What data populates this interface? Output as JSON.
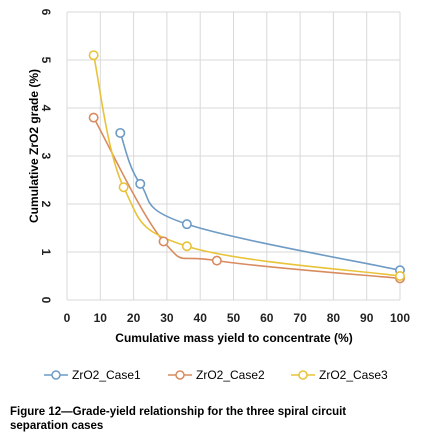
{
  "chart_data": {
    "type": "line",
    "xlabel": "Cumulative mass yield to concentrate (%)",
    "ylabel": "Cumulative ZrO2 grade (%)",
    "xlim": [
      0,
      100
    ],
    "ylim": [
      0,
      6
    ],
    "xticks": [
      "0",
      "10",
      "20",
      "30",
      "40",
      "50",
      "60",
      "70",
      "80",
      "90",
      "100"
    ],
    "yticks": [
      "0",
      "1",
      "2",
      "3",
      "4",
      "5",
      "6"
    ],
    "grid": true,
    "legend_position": "bottom",
    "series": [
      {
        "name": "ZrO2_Case1",
        "color": "#6e9bc5",
        "x": [
          16,
          22,
          36,
          100
        ],
        "y": [
          3.48,
          2.42,
          1.58,
          0.62
        ]
      },
      {
        "name": "ZrO2_Case2",
        "color": "#d98b5f",
        "x": [
          8,
          29,
          45,
          100
        ],
        "y": [
          3.8,
          1.22,
          0.82,
          0.45
        ]
      },
      {
        "name": "ZrO2_Case3",
        "color": "#e8c33a",
        "x": [
          8,
          17,
          36,
          100
        ],
        "y": [
          5.1,
          2.35,
          1.12,
          0.5
        ]
      }
    ]
  },
  "caption": {
    "line1": "Figure 12—Grade-yield relationship for the three spiral circuit",
    "line2": "separation cases"
  }
}
